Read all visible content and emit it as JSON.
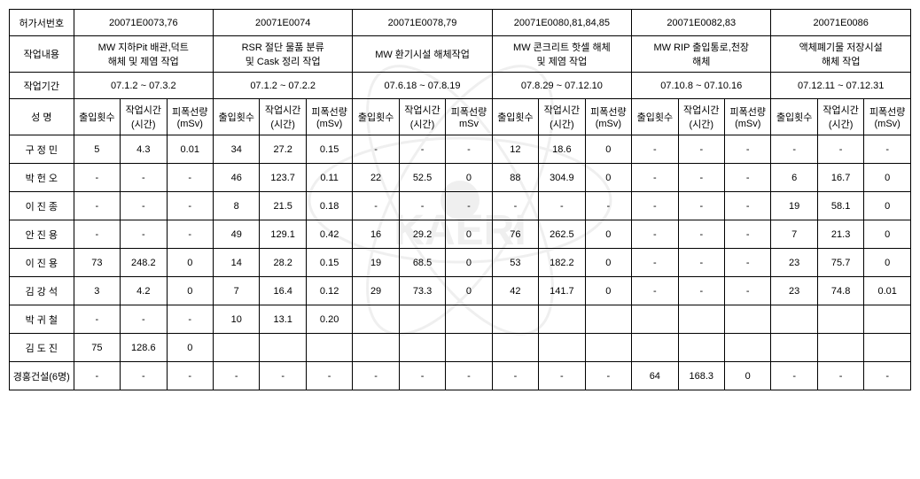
{
  "type": "table",
  "background_color": "#ffffff",
  "border_color": "#000000",
  "font_size_pt": 11,
  "watermark_text": "KAERI",
  "labels": {
    "permit_no": "허가서번호",
    "work_desc": "작업내용",
    "work_period": "작업기간",
    "name": "성   명",
    "entries": "출입횟수",
    "hours": "작업시간\n(시간)",
    "dose": "피폭선량\n(mSv)",
    "dose_alt": "피폭선량\nmSv"
  },
  "groups": [
    {
      "permit": "20071E0073,76",
      "desc": "MW 지하Pit 배관,덕트\n해체 및 제염 작업",
      "period": "07.1.2 ~ 07.3.2",
      "dose_label_key": "dose"
    },
    {
      "permit": "20071E0074",
      "desc": "RSR 절단 물품 분류\n및 Cask 정리 작업",
      "period": "07.1.2 ~ 07.2.2",
      "dose_label_key": "dose"
    },
    {
      "permit": "20071E0078,79",
      "desc": "MW 환기시설 해체작업",
      "period": "07.6.18 ~ 07.8.19",
      "dose_label_key": "dose_alt"
    },
    {
      "permit": "20071E0080,81,84,85",
      "desc": "MW 콘크리트 핫셀 해체\n및 제염 작업",
      "period": "07.8.29 ~ 07.12.10",
      "dose_label_key": "dose"
    },
    {
      "permit": "20071E0082,83",
      "desc": "MW RIP 출입통로,천장\n해체",
      "period": "07.10.8 ~ 07.10.16",
      "dose_label_key": "dose"
    },
    {
      "permit": "20071E0086",
      "desc": "액체폐기물 저장시설\n해체 작업",
      "period": "07.12.11 ~ 07.12.31",
      "dose_label_key": "dose"
    }
  ],
  "rows": [
    {
      "name": "구 정 민",
      "cells": [
        [
          "5",
          "4.3",
          "0.01"
        ],
        [
          "34",
          "27.2",
          "0.15"
        ],
        [
          "-",
          "-",
          "-"
        ],
        [
          "12",
          "18.6",
          "0"
        ],
        [
          "-",
          "-",
          "-"
        ],
        [
          "-",
          "-",
          "-"
        ]
      ]
    },
    {
      "name": "박 헌 오",
      "cells": [
        [
          "-",
          "-",
          "-"
        ],
        [
          "46",
          "123.7",
          "0.11"
        ],
        [
          "22",
          "52.5",
          "0"
        ],
        [
          "88",
          "304.9",
          "0"
        ],
        [
          "-",
          "-",
          "-"
        ],
        [
          "6",
          "16.7",
          "0"
        ]
      ]
    },
    {
      "name": "이 진 종",
      "cells": [
        [
          "-",
          "-",
          "-"
        ],
        [
          "8",
          "21.5",
          "0.18"
        ],
        [
          "-",
          "-",
          "-"
        ],
        [
          "-",
          "-",
          "-"
        ],
        [
          "-",
          "-",
          "-"
        ],
        [
          "19",
          "58.1",
          "0"
        ]
      ]
    },
    {
      "name": "안 진 용",
      "cells": [
        [
          "-",
          "-",
          "-"
        ],
        [
          "49",
          "129.1",
          "0.42"
        ],
        [
          "16",
          "29.2",
          "0"
        ],
        [
          "76",
          "262.5",
          "0"
        ],
        [
          "-",
          "-",
          "-"
        ],
        [
          "7",
          "21.3",
          "0"
        ]
      ]
    },
    {
      "name": "이 진 용",
      "cells": [
        [
          "73",
          "248.2",
          "0"
        ],
        [
          "14",
          "28.2",
          "0.15"
        ],
        [
          "19",
          "68.5",
          "0"
        ],
        [
          "53",
          "182.2",
          "0"
        ],
        [
          "-",
          "-",
          "-"
        ],
        [
          "23",
          "75.7",
          "0"
        ]
      ]
    },
    {
      "name": "김 강 석",
      "cells": [
        [
          "3",
          "4.2",
          "0"
        ],
        [
          "7",
          "16.4",
          "0.12"
        ],
        [
          "29",
          "73.3",
          "0"
        ],
        [
          "42",
          "141.7",
          "0"
        ],
        [
          "-",
          "-",
          "-"
        ],
        [
          "23",
          "74.8",
          "0.01"
        ]
      ]
    },
    {
      "name": "박 귀 철",
      "cells": [
        [
          "-",
          "-",
          "-"
        ],
        [
          "10",
          "13.1",
          "0.20"
        ],
        [
          "",
          "",
          ""
        ],
        [
          "",
          "",
          ""
        ],
        [
          "",
          "",
          ""
        ],
        [
          "",
          "",
          ""
        ]
      ]
    },
    {
      "name": "김 도 진",
      "cells": [
        [
          "75",
          "128.6",
          "0"
        ],
        [
          "",
          "",
          ""
        ],
        [
          "",
          "",
          ""
        ],
        [
          "",
          "",
          ""
        ],
        [
          "",
          "",
          ""
        ],
        [
          "",
          "",
          ""
        ]
      ]
    },
    {
      "name": "경홍건설(6명)",
      "cells": [
        [
          "-",
          "-",
          "-"
        ],
        [
          "-",
          "-",
          "-"
        ],
        [
          "-",
          "-",
          "-"
        ],
        [
          "-",
          "-",
          "-"
        ],
        [
          "64",
          "168.3",
          "0"
        ],
        [
          "-",
          "-",
          "-"
        ]
      ]
    }
  ]
}
